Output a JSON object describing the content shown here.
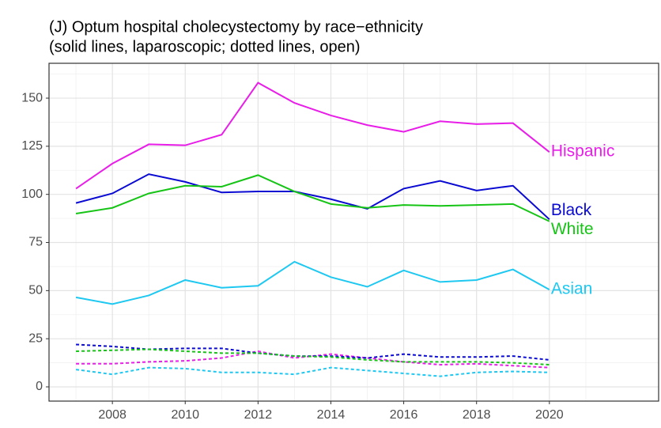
{
  "chart_data": {
    "type": "line",
    "title": "(J) Optum hospital cholecystectomy by race−ethnicity",
    "subtitle": "(solid lines, laparoscopic; dotted lines, open)",
    "x": [
      2007,
      2008,
      2009,
      2010,
      2011,
      2012,
      2013,
      2014,
      2015,
      2016,
      2017,
      2018,
      2019,
      2020
    ],
    "series": [
      {
        "name": "Hispanic",
        "color": "#e81ee8",
        "values": [
          103,
          116,
          126,
          125.5,
          131,
          158,
          147.5,
          141,
          136,
          132.5,
          138,
          136.5,
          137,
          122
        ],
        "open_values": [
          12,
          12,
          13,
          13.5,
          15,
          18.5,
          15,
          17,
          15,
          13,
          11.5,
          12,
          11,
          10
        ]
      },
      {
        "name": "Black",
        "color": "#0a0ad2",
        "values": [
          95.5,
          100.5,
          110.5,
          106.5,
          101,
          101.5,
          101.5,
          97.5,
          92.5,
          103,
          107,
          102,
          104.5,
          87
        ],
        "open_values": [
          22,
          21,
          19.5,
          20,
          20,
          17.5,
          16,
          16,
          15,
          17,
          15.5,
          15.5,
          16,
          14
        ]
      },
      {
        "name": "White",
        "color": "#16c416",
        "values": [
          90,
          93,
          100.5,
          104.5,
          104,
          110,
          101.5,
          95,
          93,
          94.5,
          94,
          94.5,
          95,
          86
        ],
        "open_values": [
          18.5,
          19,
          19.5,
          18.5,
          17.5,
          17.5,
          16,
          15.5,
          14,
          13,
          13,
          13,
          12.5,
          11.5
        ]
      },
      {
        "name": "Asian",
        "color": "#1ec8f0",
        "values": [
          46.5,
          43,
          47.5,
          55.5,
          51.5,
          52.5,
          65,
          57,
          52,
          60.5,
          54.5,
          55.5,
          61,
          50.5
        ],
        "open_values": [
          9,
          6.5,
          10,
          9.5,
          7.5,
          7.5,
          6.5,
          10,
          8.5,
          7,
          5.5,
          7.5,
          8,
          7.5
        ]
      }
    ],
    "xlim": [
      2006.26,
      2023
    ],
    "xticks": [
      2008,
      2010,
      2012,
      2014,
      2016,
      2018,
      2020
    ],
    "ylim": [
      -7.4,
      168.1
    ],
    "yticks": [
      0,
      25,
      50,
      75,
      100,
      125,
      150
    ],
    "grid": true
  }
}
